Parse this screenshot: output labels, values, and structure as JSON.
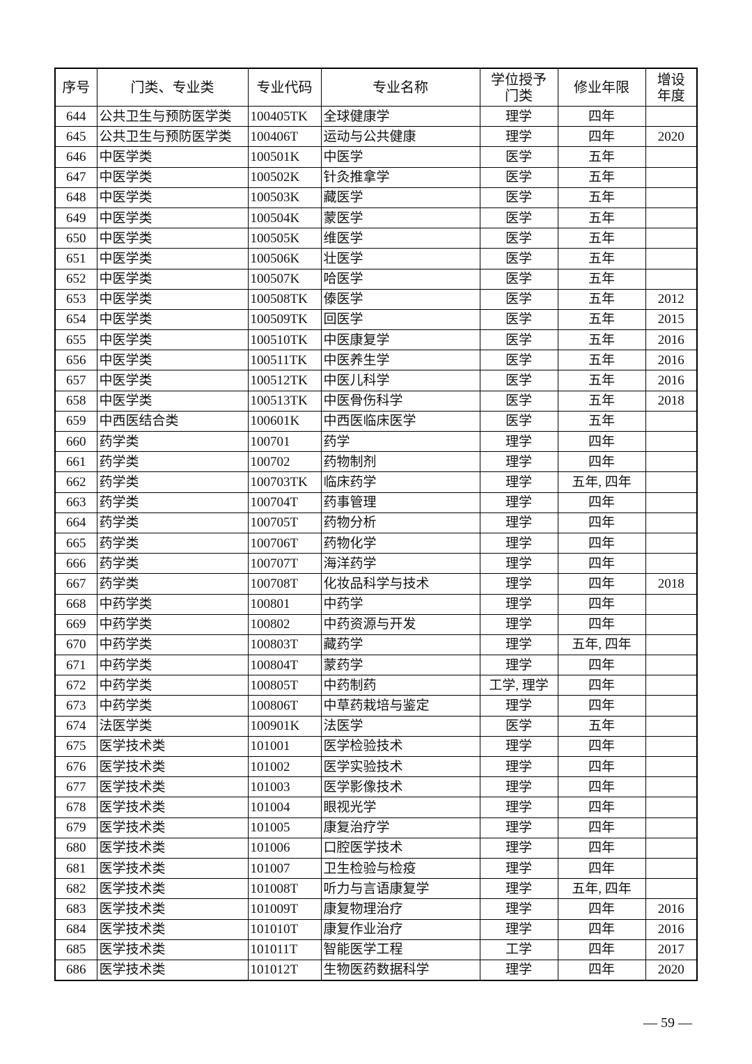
{
  "table": {
    "headers": [
      "序号",
      "门类、专业类",
      "专业代码",
      "专业名称",
      "学位授予门类",
      "修业年限",
      "增设年度"
    ],
    "rows": [
      [
        "644",
        "公共卫生与预防医学类",
        "100405TK",
        "全球健康学",
        "理学",
        "四年",
        ""
      ],
      [
        "645",
        "公共卫生与预防医学类",
        "100406T",
        "运动与公共健康",
        "理学",
        "四年",
        "2020"
      ],
      [
        "646",
        "中医学类",
        "100501K",
        "中医学",
        "医学",
        "五年",
        ""
      ],
      [
        "647",
        "中医学类",
        "100502K",
        "针灸推拿学",
        "医学",
        "五年",
        ""
      ],
      [
        "648",
        "中医学类",
        "100503K",
        "藏医学",
        "医学",
        "五年",
        ""
      ],
      [
        "649",
        "中医学类",
        "100504K",
        "蒙医学",
        "医学",
        "五年",
        ""
      ],
      [
        "650",
        "中医学类",
        "100505K",
        "维医学",
        "医学",
        "五年",
        ""
      ],
      [
        "651",
        "中医学类",
        "100506K",
        "壮医学",
        "医学",
        "五年",
        ""
      ],
      [
        "652",
        "中医学类",
        "100507K",
        "哈医学",
        "医学",
        "五年",
        ""
      ],
      [
        "653",
        "中医学类",
        "100508TK",
        "傣医学",
        "医学",
        "五年",
        "2012"
      ],
      [
        "654",
        "中医学类",
        "100509TK",
        "回医学",
        "医学",
        "五年",
        "2015"
      ],
      [
        "655",
        "中医学类",
        "100510TK",
        "中医康复学",
        "医学",
        "五年",
        "2016"
      ],
      [
        "656",
        "中医学类",
        "100511TK",
        "中医养生学",
        "医学",
        "五年",
        "2016"
      ],
      [
        "657",
        "中医学类",
        "100512TK",
        "中医儿科学",
        "医学",
        "五年",
        "2016"
      ],
      [
        "658",
        "中医学类",
        "100513TK",
        "中医骨伤科学",
        "医学",
        "五年",
        "2018"
      ],
      [
        "659",
        "中西医结合类",
        "100601K",
        "中西医临床医学",
        "医学",
        "五年",
        ""
      ],
      [
        "660",
        "药学类",
        "100701",
        "药学",
        "理学",
        "四年",
        ""
      ],
      [
        "661",
        "药学类",
        "100702",
        "药物制剂",
        "理学",
        "四年",
        ""
      ],
      [
        "662",
        "药学类",
        "100703TK",
        "临床药学",
        "理学",
        "五年, 四年",
        ""
      ],
      [
        "663",
        "药学类",
        "100704T",
        "药事管理",
        "理学",
        "四年",
        ""
      ],
      [
        "664",
        "药学类",
        "100705T",
        "药物分析",
        "理学",
        "四年",
        ""
      ],
      [
        "665",
        "药学类",
        "100706T",
        "药物化学",
        "理学",
        "四年",
        ""
      ],
      [
        "666",
        "药学类",
        "100707T",
        "海洋药学",
        "理学",
        "四年",
        ""
      ],
      [
        "667",
        "药学类",
        "100708T",
        "化妆品科学与技术",
        "理学",
        "四年",
        "2018"
      ],
      [
        "668",
        "中药学类",
        "100801",
        "中药学",
        "理学",
        "四年",
        ""
      ],
      [
        "669",
        "中药学类",
        "100802",
        "中药资源与开发",
        "理学",
        "四年",
        ""
      ],
      [
        "670",
        "中药学类",
        "100803T",
        "藏药学",
        "理学",
        "五年, 四年",
        ""
      ],
      [
        "671",
        "中药学类",
        "100804T",
        "蒙药学",
        "理学",
        "四年",
        ""
      ],
      [
        "672",
        "中药学类",
        "100805T",
        "中药制药",
        "工学, 理学",
        "四年",
        ""
      ],
      [
        "673",
        "中药学类",
        "100806T",
        "中草药栽培与鉴定",
        "理学",
        "四年",
        ""
      ],
      [
        "674",
        "法医学类",
        "100901K",
        "法医学",
        "医学",
        "五年",
        ""
      ],
      [
        "675",
        "医学技术类",
        "101001",
        "医学检验技术",
        "理学",
        "四年",
        ""
      ],
      [
        "676",
        "医学技术类",
        "101002",
        "医学实验技术",
        "理学",
        "四年",
        ""
      ],
      [
        "677",
        "医学技术类",
        "101003",
        "医学影像技术",
        "理学",
        "四年",
        ""
      ],
      [
        "678",
        "医学技术类",
        "101004",
        "眼视光学",
        "理学",
        "四年",
        ""
      ],
      [
        "679",
        "医学技术类",
        "101005",
        "康复治疗学",
        "理学",
        "四年",
        ""
      ],
      [
        "680",
        "医学技术类",
        "101006",
        "口腔医学技术",
        "理学",
        "四年",
        ""
      ],
      [
        "681",
        "医学技术类",
        "101007",
        "卫生检验与检疫",
        "理学",
        "四年",
        ""
      ],
      [
        "682",
        "医学技术类",
        "101008T",
        "听力与言语康复学",
        "理学",
        "五年, 四年",
        ""
      ],
      [
        "683",
        "医学技术类",
        "101009T",
        "康复物理治疗",
        "理学",
        "四年",
        "2016"
      ],
      [
        "684",
        "医学技术类",
        "101010T",
        "康复作业治疗",
        "理学",
        "四年",
        "2016"
      ],
      [
        "685",
        "医学技术类",
        "101011T",
        "智能医学工程",
        "工学",
        "四年",
        "2017"
      ],
      [
        "686",
        "医学技术类",
        "101012T",
        "生物医药数据科学",
        "理学",
        "四年",
        "2020"
      ]
    ]
  },
  "footer": {
    "page_number": "— 59 —"
  }
}
